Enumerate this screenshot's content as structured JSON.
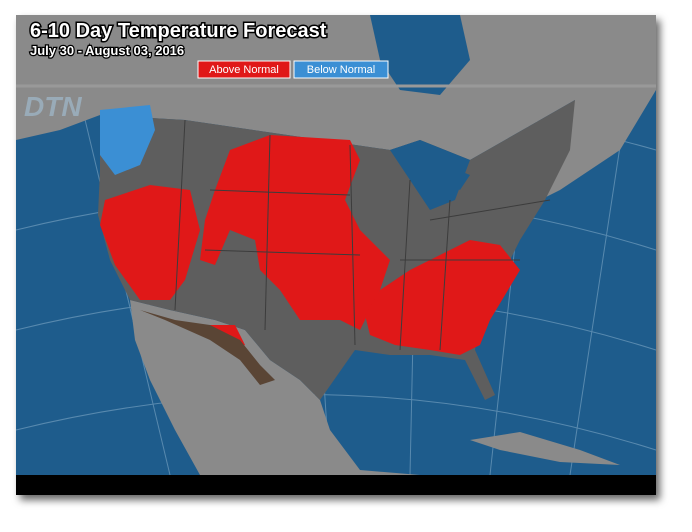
{
  "header": {
    "title": "6-10 Day Temperature Forecast",
    "date_range": "July 30 - August 03, 2016"
  },
  "legend": [
    {
      "label": "Above Normal",
      "color": "#e01818"
    },
    {
      "label": "Below Normal",
      "color": "#3b8fd4"
    }
  ],
  "logo": "DTN"
}
